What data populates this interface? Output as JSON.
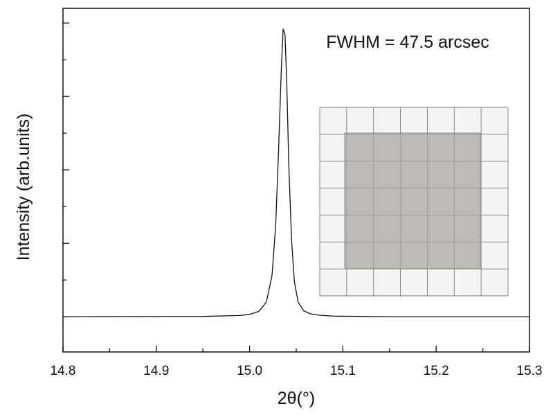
{
  "chart_data": {
    "type": "line",
    "xlabel": "2θ(°)",
    "ylabel": "Intensity (arb.units)",
    "xlim": [
      14.8,
      15.3
    ],
    "ylim": [
      -0.12,
      1.05
    ],
    "x_ticks": [
      "14.8",
      "14.9",
      "15.0",
      "15.1",
      "15.2",
      "15.3"
    ],
    "y_tick_labels_shown": false,
    "annotation": "FWHM = 47.5 arcsec",
    "legend": "none",
    "grid": false,
    "inset": "photograph of a square translucent sample on a grid paper background",
    "series": [
      {
        "color": "#111111",
        "x": [
          14.8,
          14.95,
          14.99,
          15.0,
          15.01,
          15.018,
          15.024,
          15.028,
          15.031,
          15.034,
          15.036,
          15.038,
          15.04,
          15.042,
          15.045,
          15.048,
          15.052,
          15.058,
          15.065,
          15.075,
          15.09,
          15.15,
          15.3
        ],
        "y": [
          0.0,
          0.001,
          0.004,
          0.008,
          0.018,
          0.05,
          0.14,
          0.31,
          0.56,
          0.84,
          0.98,
          0.96,
          0.78,
          0.52,
          0.26,
          0.12,
          0.05,
          0.02,
          0.01,
          0.005,
          0.002,
          0.0,
          0.0
        ]
      }
    ]
  }
}
